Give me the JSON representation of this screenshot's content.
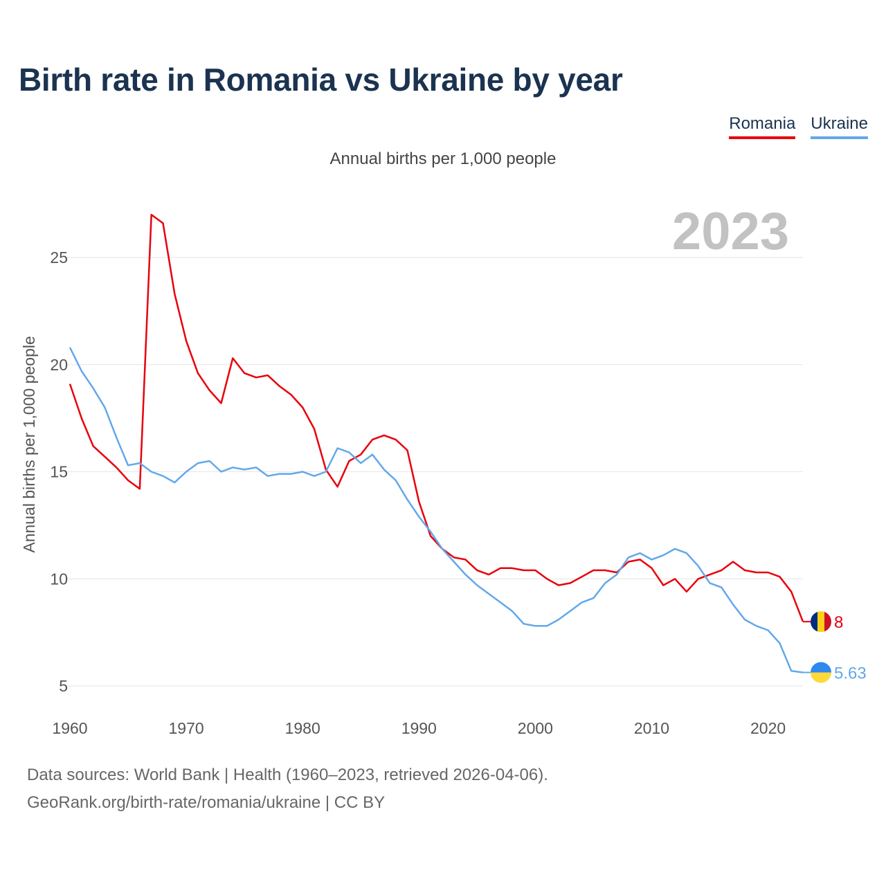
{
  "header": {
    "title": "Birth rate in Romania vs Ukraine by year"
  },
  "legend": [
    {
      "label": "Romania",
      "color": "#e8000b"
    },
    {
      "label": "Ukraine",
      "color": "#62a8ea"
    }
  ],
  "footer": {
    "sources": "Data sources: World Bank | Health (1960–2023, retrieved 2026-04-06).",
    "credit": "GeoRank.org/birth-rate/romania/ukraine | CC BY"
  },
  "chart_data": {
    "type": "line",
    "title": "Birth rate in Romania vs Ukraine by year",
    "subtitle": "Annual births per 1,000 people",
    "ylabel": "Annual births per 1,000 people",
    "xlabel": "",
    "year_label": "2023",
    "xlim": [
      1960,
      2023
    ],
    "ylim": [
      5,
      27
    ],
    "x_ticks": [
      1960,
      1970,
      1980,
      1990,
      2000,
      2010,
      2020
    ],
    "y_ticks": [
      5,
      10,
      15,
      20,
      25
    ],
    "grid": true,
    "legend_position": "top-right",
    "x": [
      1960,
      1961,
      1962,
      1963,
      1964,
      1965,
      1966,
      1967,
      1968,
      1969,
      1970,
      1971,
      1972,
      1973,
      1974,
      1975,
      1976,
      1977,
      1978,
      1979,
      1980,
      1981,
      1982,
      1983,
      1984,
      1985,
      1986,
      1987,
      1988,
      1989,
      1990,
      1991,
      1992,
      1993,
      1994,
      1995,
      1996,
      1997,
      1998,
      1999,
      2000,
      2001,
      2002,
      2003,
      2004,
      2005,
      2006,
      2007,
      2008,
      2009,
      2010,
      2011,
      2012,
      2013,
      2014,
      2015,
      2016,
      2017,
      2018,
      2019,
      2020,
      2021,
      2022,
      2023
    ],
    "series": [
      {
        "name": "Romania",
        "color": "#e8000b",
        "end_label": "8",
        "values": [
          19.1,
          17.5,
          16.2,
          15.7,
          15.2,
          14.6,
          14.2,
          27.0,
          26.6,
          23.3,
          21.1,
          19.6,
          18.8,
          18.2,
          20.3,
          19.6,
          19.4,
          19.5,
          19.0,
          18.6,
          18.0,
          17.0,
          15.1,
          14.3,
          15.5,
          15.8,
          16.5,
          16.7,
          16.5,
          16.0,
          13.6,
          12.0,
          11.4,
          11.0,
          10.9,
          10.4,
          10.2,
          10.5,
          10.5,
          10.4,
          10.4,
          10.0,
          9.7,
          9.8,
          10.1,
          10.4,
          10.4,
          10.3,
          10.8,
          10.9,
          10.5,
          9.7,
          10.0,
          9.4,
          10.0,
          10.2,
          10.4,
          10.8,
          10.4,
          10.3,
          10.3,
          10.1,
          9.4,
          8.0
        ]
      },
      {
        "name": "Ukraine",
        "color": "#62a8ea",
        "end_label": "5.63",
        "values": [
          20.8,
          19.7,
          18.9,
          18.0,
          16.6,
          15.3,
          15.4,
          15.0,
          14.8,
          14.5,
          15.0,
          15.4,
          15.5,
          15.0,
          15.2,
          15.1,
          15.2,
          14.8,
          14.9,
          14.9,
          15.0,
          14.8,
          15.0,
          16.1,
          15.9,
          15.4,
          15.8,
          15.1,
          14.6,
          13.7,
          12.9,
          12.2,
          11.4,
          10.8,
          10.2,
          9.7,
          9.3,
          8.9,
          8.5,
          7.9,
          7.8,
          7.8,
          8.1,
          8.5,
          8.9,
          9.1,
          9.8,
          10.2,
          11.0,
          11.2,
          10.9,
          11.1,
          11.4,
          11.2,
          10.6,
          9.8,
          9.6,
          8.8,
          8.1,
          7.8,
          7.6,
          7.0,
          5.7,
          5.63
        ]
      }
    ]
  }
}
